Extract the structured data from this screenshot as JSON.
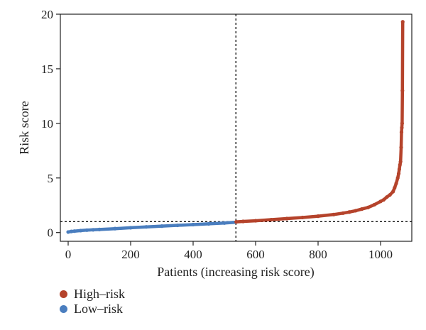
{
  "colors": {
    "high_risk": "#B5432B",
    "low_risk": "#4A7EBF",
    "axis": "#222222"
  },
  "chart_data": {
    "type": "scatter",
    "xlabel": "Patients (increasing risk score)",
    "ylabel": "Risk score",
    "xlim": [
      -25,
      1100
    ],
    "ylim": [
      -0.8,
      20
    ],
    "x_ticks": [
      0,
      200,
      400,
      600,
      800,
      1000
    ],
    "y_ticks": [
      0,
      5,
      10,
      15,
      20
    ],
    "grid": false,
    "legend_position": "bottom-left",
    "cutoff_patient": 537,
    "cutoff_risk_score": 1.0,
    "series": [
      {
        "name": "Low-risk",
        "color": "#4A7EBF",
        "x": [
          0,
          10,
          20,
          40,
          60,
          80,
          100,
          150,
          200,
          250,
          300,
          350,
          400,
          450,
          500,
          537
        ],
        "y": [
          0.05,
          0.1,
          0.13,
          0.18,
          0.22,
          0.25,
          0.28,
          0.36,
          0.44,
          0.52,
          0.59,
          0.66,
          0.73,
          0.8,
          0.87,
          0.95
        ]
      },
      {
        "name": "High-risk",
        "color": "#B5432B",
        "x": [
          538,
          560,
          600,
          650,
          700,
          750,
          800,
          850,
          880,
          900,
          920,
          940,
          960,
          980,
          1000,
          1010,
          1020,
          1030,
          1040,
          1045,
          1050,
          1055,
          1058,
          1060,
          1062,
          1064,
          1066,
          1067,
          1068,
          1069,
          1070,
          1071
        ],
        "y": [
          0.98,
          1.02,
          1.08,
          1.18,
          1.28,
          1.38,
          1.5,
          1.65,
          1.78,
          1.88,
          2.0,
          2.15,
          2.3,
          2.55,
          2.85,
          3.0,
          3.25,
          3.45,
          3.75,
          4.1,
          4.5,
          5.0,
          5.4,
          5.8,
          6.2,
          6.5,
          7.8,
          9.2,
          9.6,
          10.0,
          13.0,
          19.3
        ]
      }
    ]
  },
  "legend": {
    "high_risk_label": "High–risk",
    "low_risk_label": "Low–risk"
  }
}
